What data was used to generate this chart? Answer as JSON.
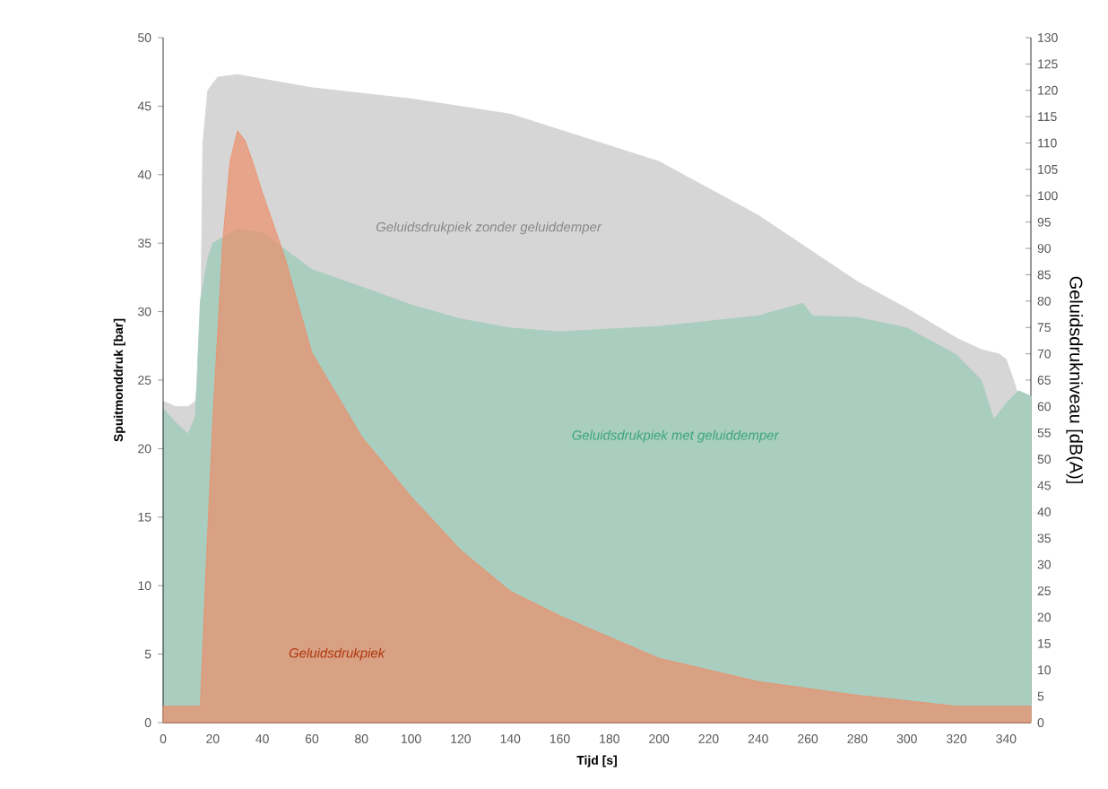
{
  "chart_data": {
    "type": "area",
    "xlabel": "Tijd [s]",
    "ylabel": "Spuitmonddruk [bar]",
    "y2label": "Geluidsdrukniveau [dB(A)]",
    "xlim": [
      0,
      350
    ],
    "xticks": [
      0,
      20,
      40,
      60,
      80,
      100,
      120,
      140,
      160,
      180,
      200,
      220,
      240,
      260,
      280,
      300,
      320,
      340
    ],
    "ylim": [
      0,
      50
    ],
    "yticks": [
      0,
      5,
      10,
      15,
      20,
      25,
      30,
      35,
      40,
      45,
      50
    ],
    "y2lim": [
      0,
      130
    ],
    "y2ticks": [
      0,
      5,
      10,
      15,
      20,
      25,
      30,
      35,
      40,
      45,
      50,
      55,
      60,
      65,
      70,
      75,
      80,
      85,
      90,
      95,
      100,
      105,
      110,
      115,
      120,
      125,
      130
    ],
    "series": [
      {
        "name": "Geluidsdrukpiek zonder geluiddemper",
        "color": "#d6d6d6",
        "axis": "y2",
        "x": [
          0,
          5,
          10,
          13,
          15,
          16,
          18,
          22,
          30,
          60,
          100,
          140,
          150,
          200,
          240,
          280,
          300,
          320,
          330,
          337,
          340,
          343,
          345,
          350
        ],
        "values": [
          61,
          60,
          60,
          61,
          68,
          110,
          120,
          122.5,
          123,
          120.5,
          118.4,
          115.5,
          114,
          106.5,
          96.3,
          83.7,
          78.6,
          73,
          70.8,
          70,
          69,
          65,
          62,
          62
        ]
      },
      {
        "name": "Geluidsdrukpiek met geluiddemper",
        "color": "#a9cdbf",
        "axis": "y2",
        "x": [
          0,
          5,
          10,
          13,
          15,
          18,
          20,
          30,
          40,
          60,
          80,
          100,
          120,
          140,
          160,
          200,
          240,
          258,
          262,
          280,
          300,
          320,
          330,
          335,
          340,
          345,
          350
        ],
        "values": [
          59.6,
          57,
          54.8,
          58,
          80,
          88,
          91,
          93.6,
          93,
          86,
          82.7,
          79.3,
          76.6,
          74.9,
          74.2,
          75.2,
          77.2,
          79.6,
          77.2,
          76.9,
          74.9,
          69.8,
          65,
          57.5,
          60.6,
          63,
          62
        ]
      },
      {
        "name": "Geluidsdrukpiek",
        "color": "#ec8f6a",
        "axis": "y",
        "x": [
          0,
          15,
          17,
          20,
          24,
          27,
          30,
          33,
          36,
          40,
          49,
          60,
          80,
          100,
          120,
          140,
          160,
          200,
          240,
          280,
          320,
          350
        ],
        "values": [
          1.2,
          1.2,
          10,
          22,
          35,
          41,
          43.2,
          42.5,
          41,
          38.7,
          34,
          27,
          20.9,
          16.5,
          12.6,
          9.6,
          7.8,
          4.7,
          3,
          2,
          1.2,
          1.2
        ]
      }
    ]
  }
}
